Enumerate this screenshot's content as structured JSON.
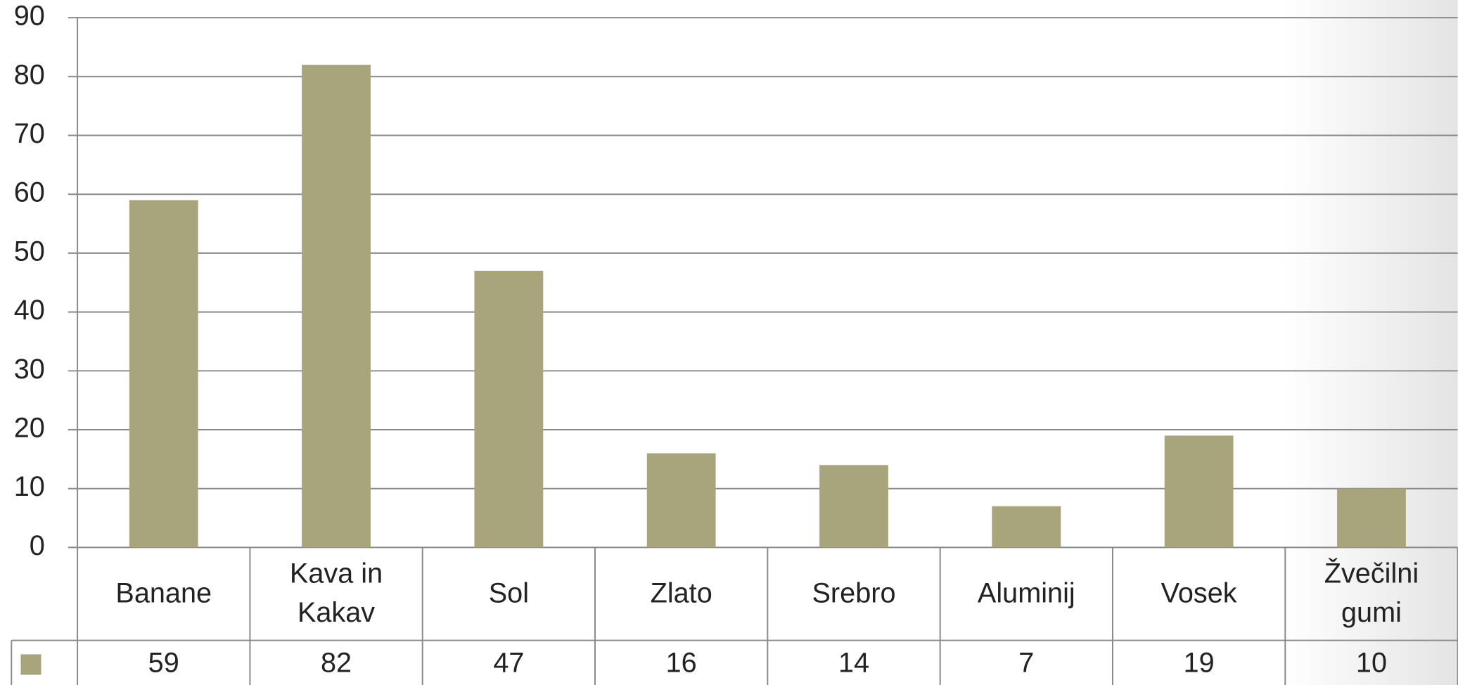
{
  "chart_data": {
    "type": "bar",
    "categories": [
      "Banane",
      "Kava in Kakav",
      "Sol",
      "Zlato",
      "Srebro",
      "Aluminij",
      "Vosek",
      "Žvečilni gumi"
    ],
    "values": [
      59,
      82,
      47,
      16,
      14,
      7,
      19,
      10
    ],
    "color": "#a8a57c",
    "ylim": [
      0,
      90
    ],
    "yticks": [
      0,
      10,
      20,
      30,
      40,
      50,
      60,
      70,
      80,
      90
    ],
    "grid": true,
    "data_table": true
  }
}
